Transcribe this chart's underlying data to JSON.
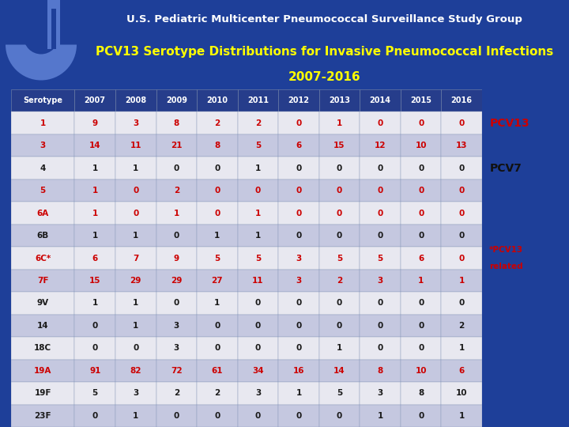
{
  "title_line1": "U.S. Pediatric Multicenter Pneumococcal Surveillance Study Group",
  "title_line2": "PCV13 Serotype Distributions for Invasive Pneumococcal Infections",
  "title_line3": "2007-2016",
  "header": [
    "Serotype",
    "2007",
    "2008",
    "2009",
    "2010",
    "2011",
    "2012",
    "2013",
    "2014",
    "2015",
    "2016"
  ],
  "rows": [
    [
      "1",
      "9",
      "3",
      "8",
      "2",
      "2",
      "0",
      "1",
      "0",
      "0",
      "0"
    ],
    [
      "3",
      "14",
      "11",
      "21",
      "8",
      "5",
      "6",
      "15",
      "12",
      "10",
      "13"
    ],
    [
      "4",
      "1",
      "1",
      "0",
      "0",
      "1",
      "0",
      "0",
      "0",
      "0",
      "0"
    ],
    [
      "5",
      "1",
      "0",
      "2",
      "0",
      "0",
      "0",
      "0",
      "0",
      "0",
      "0"
    ],
    [
      "6A",
      "1",
      "0",
      "1",
      "0",
      "1",
      "0",
      "0",
      "0",
      "0",
      "0"
    ],
    [
      "6B",
      "1",
      "1",
      "0",
      "1",
      "1",
      "0",
      "0",
      "0",
      "0",
      "0"
    ],
    [
      "6C*",
      "6",
      "7",
      "9",
      "5",
      "5",
      "3",
      "5",
      "5",
      "6",
      "0"
    ],
    [
      "7F",
      "15",
      "29",
      "29",
      "27",
      "11",
      "3",
      "2",
      "3",
      "1",
      "1"
    ],
    [
      "9V",
      "1",
      "1",
      "0",
      "1",
      "0",
      "0",
      "0",
      "0",
      "0",
      "0"
    ],
    [
      "14",
      "0",
      "1",
      "3",
      "0",
      "0",
      "0",
      "0",
      "0",
      "0",
      "2"
    ],
    [
      "18C",
      "0",
      "0",
      "3",
      "0",
      "0",
      "0",
      "1",
      "0",
      "0",
      "1"
    ],
    [
      "19A",
      "91",
      "82",
      "72",
      "61",
      "34",
      "16",
      "14",
      "8",
      "10",
      "6"
    ],
    [
      "19F",
      "5",
      "3",
      "2",
      "2",
      "3",
      "1",
      "5",
      "3",
      "8",
      "10"
    ],
    [
      "23F",
      "0",
      "1",
      "0",
      "0",
      "0",
      "0",
      "0",
      "1",
      "0",
      "1"
    ]
  ],
  "red_serotypes": [
    "1",
    "3",
    "5",
    "6A",
    "6C*",
    "7F",
    "19A"
  ],
  "header_bg": "#263d8b",
  "header_fg": "#ffffff",
  "row_bg_light": "#c5c8e0",
  "row_bg_white": "#e8e8f0",
  "red_color": "#cc0000",
  "black_color": "#1a1a1a",
  "title1_color": "#ffffff",
  "title2_color": "#ffff00",
  "pcv13_label_color": "#cc0000",
  "pcv7_label_color": "#111111",
  "side_note_color": "#cc0000",
  "fig_bg": "#1e3f99",
  "logo_arc_color": "#4a7cc7",
  "logo_inner_color": "#1e3f99"
}
